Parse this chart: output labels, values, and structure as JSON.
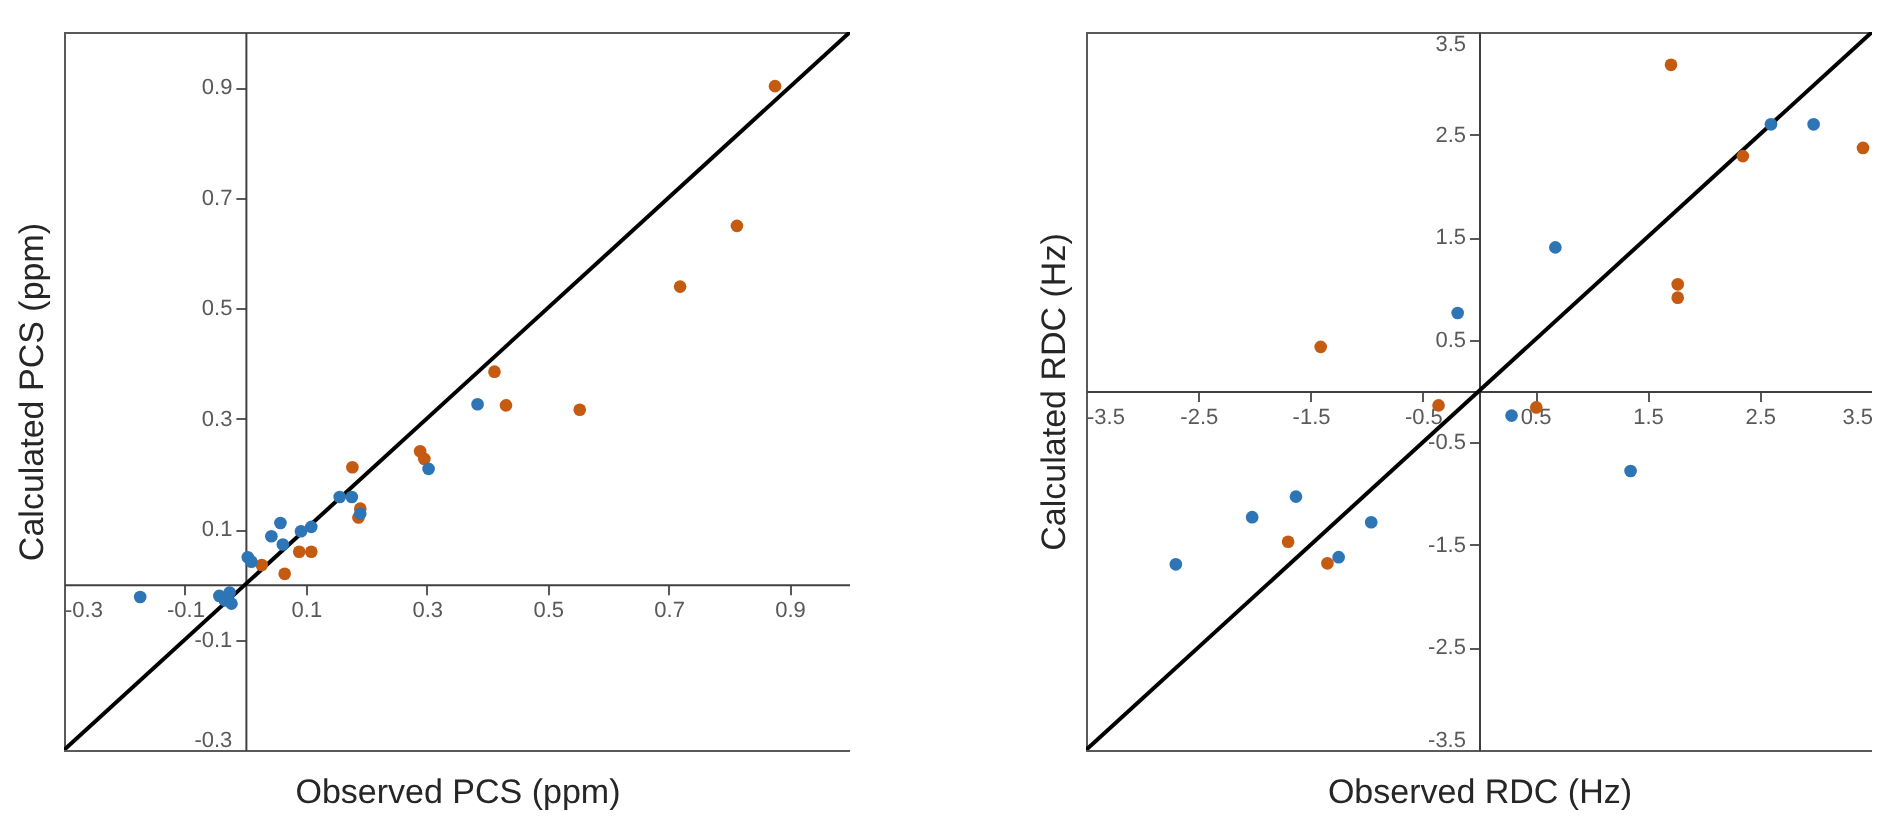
{
  "chart_data": [
    {
      "type": "scatter",
      "xlabel": "Observed PCS (ppm)",
      "ylabel": "Calculated PCS (ppm)",
      "xlim": [
        -0.3,
        1.0
      ],
      "ylim": [
        -0.3,
        1.0
      ],
      "xticks": [
        -0.3,
        -0.1,
        0.1,
        0.3,
        0.5,
        0.7,
        0.9
      ],
      "yticks": [
        -0.3,
        -0.1,
        0.1,
        0.3,
        0.5,
        0.7,
        0.9
      ],
      "grid": false,
      "marker": "circle",
      "series": [
        {
          "color": "#2e75b6",
          "x": [
            -0.174,
            -0.043,
            -0.026,
            -0.034,
            -0.023,
            0.004,
            0.01,
            0.043,
            0.058,
            0.062,
            0.092,
            0.109,
            0.156,
            0.176,
            0.19,
            0.303,
            0.384
          ],
          "values": [
            -0.023,
            -0.021,
            -0.015,
            -0.029,
            -0.035,
            0.049,
            0.041,
            0.087,
            0.111,
            0.072,
            0.096,
            0.104,
            0.158,
            0.158,
            0.128,
            0.209,
            0.326
          ]
        },
        {
          "color": "#c55a11",
          "x": [
            0.027,
            0.065,
            0.089,
            0.109,
            0.177,
            0.19,
            0.187,
            0.289,
            0.296,
            0.412,
            0.431,
            0.553,
            0.719,
            0.813,
            0.876
          ],
          "values": [
            0.035,
            0.019,
            0.059,
            0.059,
            0.212,
            0.137,
            0.121,
            0.241,
            0.227,
            0.385,
            0.324,
            0.316,
            0.539,
            0.649,
            0.902
          ]
        },
        {
          "type": "line",
          "marker": "none",
          "color": "#000000",
          "x": [
            -0.3,
            1.0
          ],
          "values": [
            -0.3,
            1.0
          ]
        }
      ]
    },
    {
      "type": "scatter",
      "xlabel": "Observed RDC (Hz)",
      "ylabel": "Calculated RDC (Hz)",
      "xlim": [
        -3.5,
        3.5
      ],
      "ylim": [
        -3.5,
        3.5
      ],
      "xticks": [
        -3.5,
        -2.5,
        -1.5,
        -0.5,
        0.5,
        1.5,
        2.5,
        3.5
      ],
      "yticks": [
        -3.5,
        -2.5,
        -1.5,
        -0.5,
        0.5,
        1.5,
        2.5,
        3.5
      ],
      "grid": false,
      "marker": "circle",
      "series": [
        {
          "color": "#2e75b6",
          "x": [
            -2.7,
            -2.02,
            -1.63,
            -1.25,
            -0.96,
            -0.19,
            0.29,
            0.68,
            1.35,
            2.6,
            2.98
          ],
          "values": [
            -1.69,
            -1.23,
            -1.03,
            -1.62,
            -1.28,
            0.76,
            -0.24,
            1.4,
            -0.78,
            2.6,
            2.6
          ]
        },
        {
          "color": "#c55a11",
          "x": [
            -1.41,
            -1.7,
            -1.35,
            -0.36,
            0.51,
            1.71,
            1.77,
            1.77,
            2.35,
            3.42
          ],
          "values": [
            0.43,
            -1.47,
            -1.68,
            -0.14,
            -0.16,
            3.18,
            1.04,
            0.91,
            2.29,
            2.37
          ]
        },
        {
          "type": "line",
          "marker": "none",
          "color": "#000000",
          "x": [
            -3.5,
            3.5
          ],
          "values": [
            -3.5,
            3.5
          ]
        }
      ]
    }
  ]
}
